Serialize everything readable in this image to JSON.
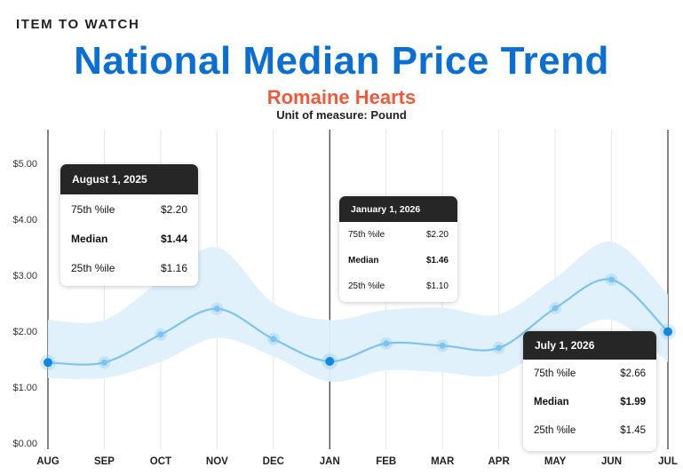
{
  "header": {
    "kicker": "ITEM TO WATCH",
    "title": "National Median Price Trend",
    "subtitle": "Romaine Hearts",
    "unit": "Unit of measure: Pound"
  },
  "colors": {
    "title": "#0a6fd0",
    "subtitle": "#ef5a3c",
    "line": "#7cc4ee",
    "band": "#dff0fb",
    "point": "#1487e0",
    "tooltip_header": "#262626"
  },
  "tooltips": [
    {
      "date": "August 1, 2025",
      "p75_label": "75th %ile",
      "p75": "$2.20",
      "median_label": "Median",
      "median": "$1.44",
      "p25_label": "25th %ile",
      "p25": "$1.16"
    },
    {
      "date": "January 1, 2026",
      "p75_label": "75th %ile",
      "p75": "$2.20",
      "median_label": "Median",
      "median": "$1.46",
      "p25_label": "25th %ile",
      "p25": "$1.10"
    },
    {
      "date": "July 1, 2026",
      "p75_label": "75th %ile",
      "p75": "$2.66",
      "median_label": "Median",
      "median": "$1.99",
      "p25_label": "25th %ile",
      "p25": "$1.45"
    }
  ],
  "chart_data": {
    "type": "line",
    "title": "National Median Price Trend",
    "subtitle": "Romaine Hearts",
    "categories": [
      "AUG",
      "SEP",
      "OCT",
      "NOV",
      "DEC",
      "JAN",
      "FEB",
      "MAR",
      "APR",
      "MAY",
      "JUN",
      "JUL"
    ],
    "series": [
      {
        "name": "Median",
        "values": [
          1.44,
          1.44,
          1.94,
          2.4,
          1.86,
          1.46,
          1.78,
          1.74,
          1.7,
          2.41,
          2.92,
          1.99
        ]
      },
      {
        "name": "75th %ile",
        "values": [
          2.2,
          2.2,
          2.9,
          3.5,
          2.5,
          2.2,
          2.38,
          2.42,
          2.3,
          2.95,
          3.6,
          2.66
        ]
      },
      {
        "name": "25th %ile",
        "values": [
          1.16,
          1.16,
          1.45,
          1.88,
          1.55,
          1.1,
          1.3,
          1.26,
          1.22,
          1.8,
          2.2,
          1.45
        ]
      }
    ],
    "y_ticks": [
      "$0.00",
      "$1.00",
      "$2.00",
      "$3.00",
      "$4.00",
      "$5.00"
    ],
    "ylim": [
      0,
      5
    ],
    "highlighted": [
      "AUG",
      "JAN",
      "JUL"
    ],
    "grid": "vertical",
    "xlabel": "",
    "ylabel": ""
  }
}
